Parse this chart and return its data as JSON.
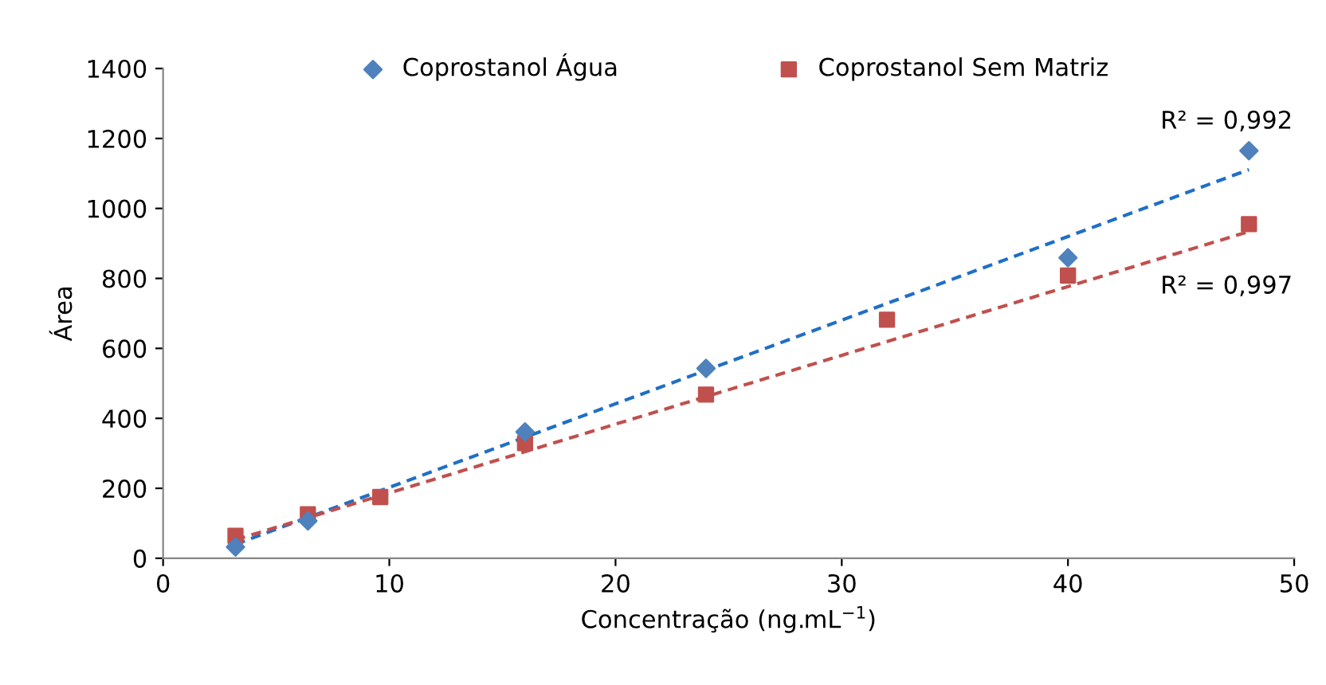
{
  "chart_data": {
    "type": "scatter",
    "xlabel": "Concentração (ng.mL$^{−1}$)",
    "ylabel": "Área",
    "xlim": [
      0,
      50
    ],
    "xticks": [
      0,
      10,
      20,
      30,
      40,
      50
    ],
    "ylim": [
      0,
      1400
    ],
    "yticks": [
      0,
      200,
      400,
      600,
      800,
      1000,
      1200,
      1400
    ],
    "grid": false,
    "legend": "top",
    "series": [
      {
        "name": "Coprostanol Água",
        "color": "#4f81bd",
        "marker": "diamond",
        "x": [
          3.2,
          6.4,
          9.6,
          16,
          24,
          40,
          48
        ],
        "values": [
          32,
          107,
          null,
          361,
          543,
          859,
          1165
        ]
      },
      {
        "name": "Coprostanol Sem Matriz",
        "color": "#c0504d",
        "marker": "square",
        "x": [
          3.2,
          6.4,
          9.6,
          16,
          24,
          32,
          40,
          48
        ],
        "values": [
          64,
          126,
          175,
          329,
          468,
          682,
          808,
          955
        ]
      },
      {
        "type": "line",
        "color": "#1f6fc5",
        "line_style": "dashed",
        "marker": "none",
        "x": [
          3.2,
          48
        ],
        "values": [
          40,
          1111
        ]
      },
      {
        "type": "line",
        "color": "#c0504d",
        "line_style": "dashed",
        "marker": "none",
        "x": [
          3.2,
          48
        ],
        "values": [
          53,
          934
        ]
      }
    ],
    "annotations": [
      {
        "text": "R² = 0,992",
        "x": 48,
        "y": 1165
      },
      {
        "text": "R² = 0,997",
        "x": 48,
        "y": 934
      }
    ]
  }
}
